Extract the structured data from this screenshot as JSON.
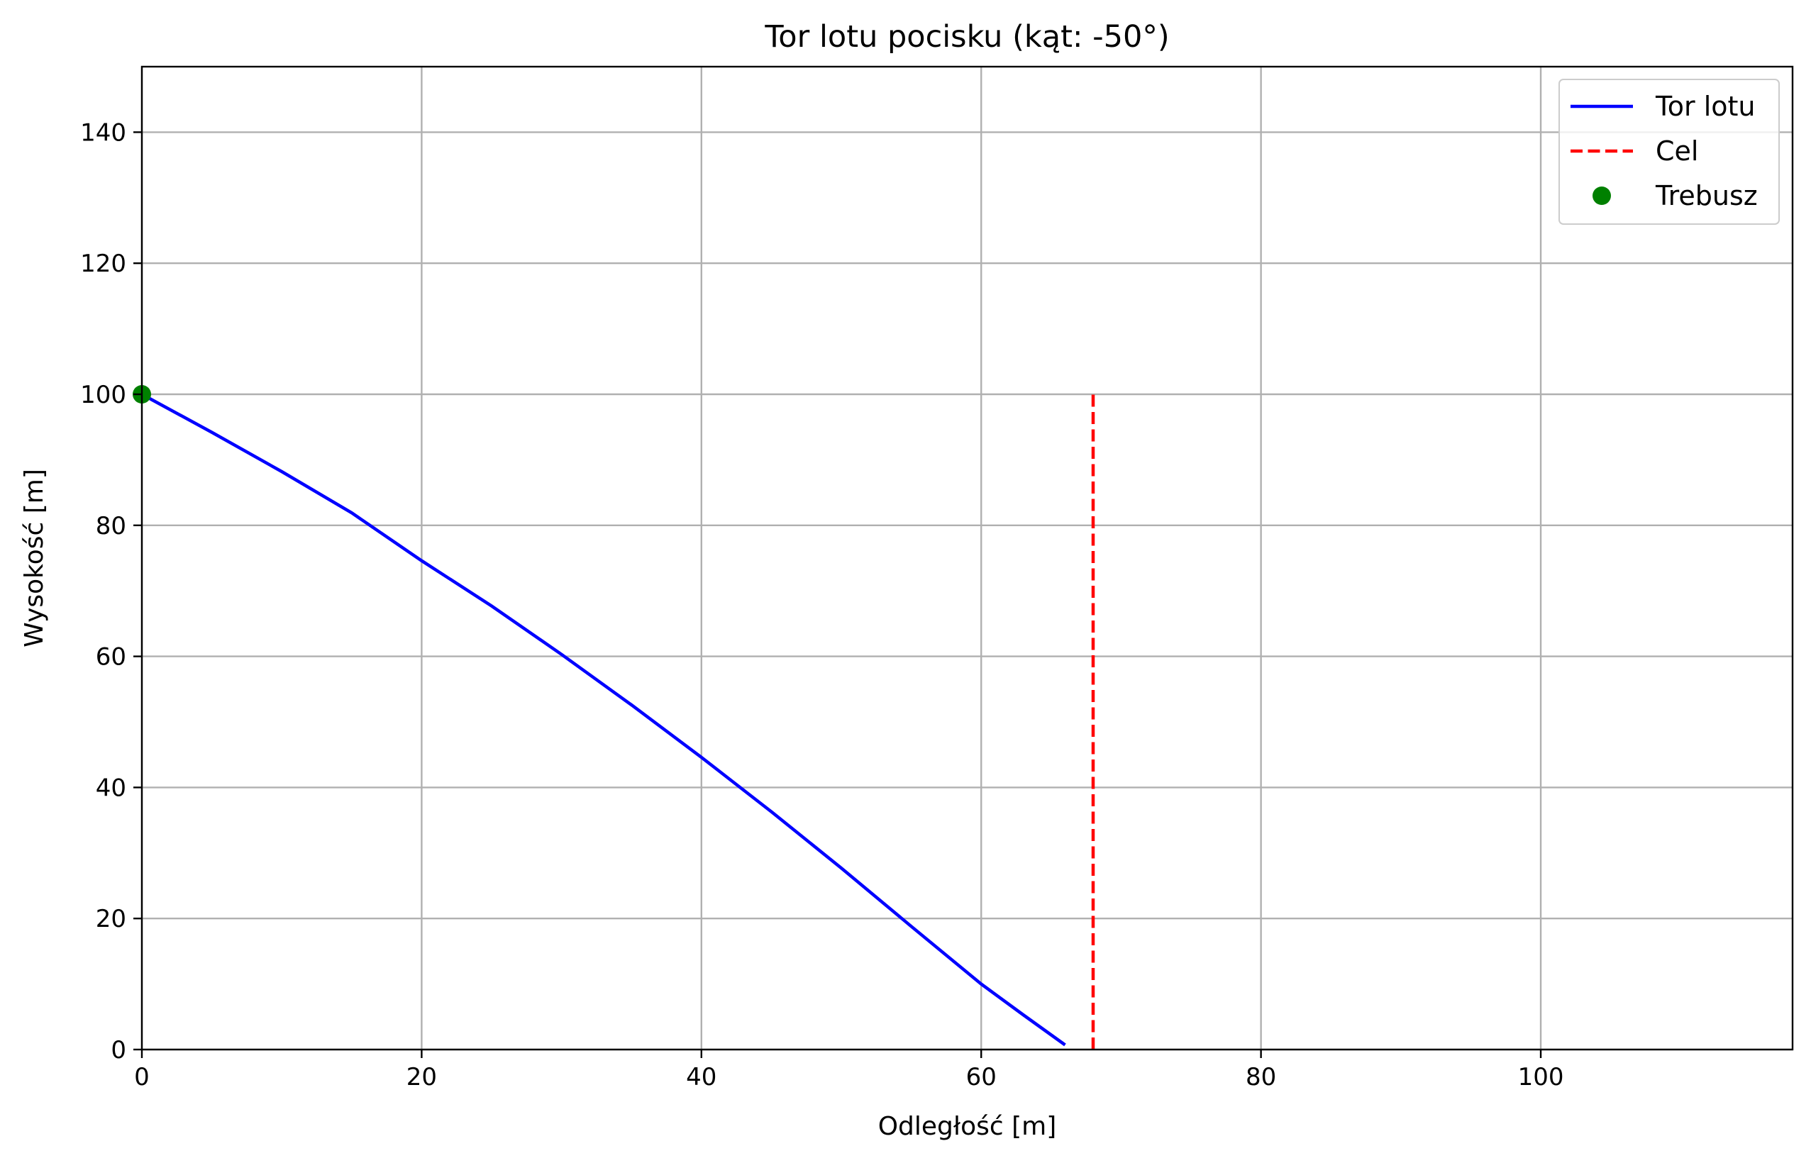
{
  "chart_data": {
    "type": "line",
    "title": "Tor lotu pocisku (kąt: -50°)",
    "xlabel": "Odległość [m]",
    "ylabel": "Wysokość [m]",
    "xlim": [
      0,
      118
    ],
    "ylim": [
      0,
      150
    ],
    "xticks": [
      0,
      20,
      40,
      60,
      80,
      100
    ],
    "yticks": [
      0,
      20,
      40,
      60,
      80,
      100,
      120,
      140
    ],
    "grid": true,
    "legend_position": "top-right",
    "series": [
      {
        "name": "Tor lotu",
        "style": "solid",
        "color": "#0000ff",
        "x": [
          0,
          5,
          10,
          15,
          20,
          25,
          30,
          35,
          40,
          45,
          50,
          55,
          60,
          63,
          66
        ],
        "y": [
          100,
          94.2,
          88.2,
          81.9,
          74.6,
          67.7,
          60.3,
          52.6,
          44.6,
          36.3,
          27.7,
          18.8,
          10.0,
          5.3,
          0.7
        ]
      },
      {
        "name": "Cel",
        "style": "dashed",
        "color": "#ff0000",
        "x": [
          68,
          68
        ],
        "y": [
          0,
          100
        ]
      },
      {
        "name": "Trebusz",
        "style": "marker",
        "color": "#008000",
        "x": [
          0
        ],
        "y": [
          100
        ]
      }
    ]
  }
}
